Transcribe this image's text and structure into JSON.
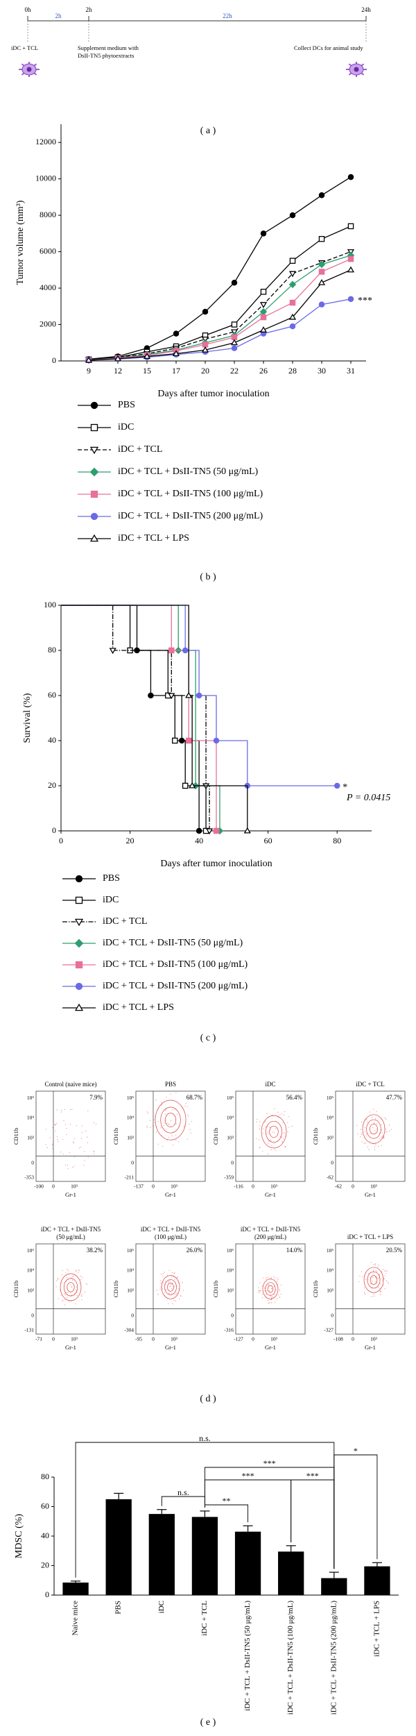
{
  "panel_labels": [
    "( a )",
    "( b )",
    "( c )",
    "( d )",
    "( e )"
  ],
  "timeline": {
    "times": [
      "0h",
      "2h",
      "24h"
    ],
    "durations": [
      "2h",
      "22h"
    ],
    "steps": [
      [
        "iDC + TCL"
      ],
      [
        "Supplement medium with",
        "DsII-TN5 phytoextracts"
      ],
      [
        "Collect DCs for animal study"
      ]
    ]
  },
  "chart_data": [
    {
      "type": "line",
      "categories": [
        "9",
        "12",
        "15",
        "17",
        "20",
        "22",
        "26",
        "28",
        "30",
        "31"
      ],
      "x_label": "Days after tumor inoculation",
      "y_label": "Tumor volume (mm³)",
      "ylim": [
        0,
        13000
      ],
      "yticks": [
        0,
        2000,
        4000,
        6000,
        8000,
        10000,
        12000
      ],
      "annotation": "***",
      "series": [
        {
          "name": "PBS",
          "color": "#000000",
          "marker": "circle",
          "filled": true,
          "line_style": "solid",
          "values": [
            100,
            250,
            700,
            1500,
            2700,
            4300,
            7000,
            8000,
            9100,
            10100
          ]
        },
        {
          "name": "iDC",
          "color": "#000000",
          "marker": "square",
          "filled": false,
          "line_style": "solid",
          "values": [
            80,
            200,
            500,
            800,
            1400,
            2000,
            3800,
            5500,
            6700,
            7400
          ]
        },
        {
          "name": "iDC + TCL",
          "color": "#000000",
          "marker": "triangle_down",
          "filled": false,
          "line_style": "dashed",
          "values": [
            60,
            180,
            400,
            700,
            1200,
            1600,
            3100,
            4800,
            5400,
            6000
          ]
        },
        {
          "name": "iDC + TCL + DsII-TN5 (50 μg/mL)",
          "color": "#2e9e6e",
          "marker": "diamond",
          "filled": true,
          "line_style": "solid",
          "values": [
            50,
            150,
            350,
            600,
            1000,
            1400,
            2700,
            4200,
            5300,
            5800
          ]
        },
        {
          "name": "iDC + TCL + DsII-TN5 (100 μg/mL)",
          "color": "#e8709a",
          "marker": "square",
          "filled": true,
          "line_style": "solid",
          "values": [
            50,
            150,
            300,
            550,
            900,
            1300,
            2400,
            3200,
            4900,
            5600
          ]
        },
        {
          "name": "iDC + TCL + DsII-TN5 (200 μg/mL)",
          "color": "#6a6ae8",
          "marker": "circle",
          "filled": true,
          "line_style": "solid",
          "values": [
            40,
            100,
            200,
            350,
            500,
            700,
            1500,
            1900,
            3100,
            3400
          ]
        },
        {
          "name": "iDC + TCL + LPS",
          "color": "#000000",
          "marker": "triangle_up",
          "filled": false,
          "line_style": "solid",
          "values": [
            40,
            120,
            250,
            400,
            600,
            1000,
            1700,
            2400,
            4300,
            5000
          ]
        }
      ]
    },
    {
      "type": "step",
      "x_label": "Days after tumor inoculation",
      "y_label": "Survival (%)",
      "xlim": [
        0,
        90
      ],
      "xticks": [
        0,
        20,
        40,
        60,
        80
      ],
      "ylim": [
        0,
        100
      ],
      "yticks": [
        0,
        20,
        40,
        60,
        80,
        100
      ],
      "annotations": [
        "*",
        "P = 0.0415"
      ],
      "series": [
        {
          "name": "PBS",
          "color": "#000000",
          "marker": "circle",
          "filled": true,
          "line_style": "solid",
          "x": [
            0,
            22,
            26,
            35,
            40
          ],
          "values": [
            100,
            80,
            60,
            40,
            0
          ]
        },
        {
          "name": "iDC",
          "color": "#000000",
          "marker": "square",
          "filled": false,
          "line_style": "solid",
          "x": [
            0,
            20,
            31,
            33,
            36,
            42
          ],
          "values": [
            100,
            80,
            60,
            40,
            20,
            0
          ]
        },
        {
          "name": "iDC + TCL",
          "color": "#000000",
          "marker": "triangle_down",
          "filled": false,
          "line_style": "dashdot",
          "x": [
            0,
            15,
            32,
            42,
            43
          ],
          "values": [
            100,
            80,
            60,
            20,
            0
          ]
        },
        {
          "name": "iDC + TCL + DsII-TN5 (50 μg/mL)",
          "color": "#2e9e6e",
          "marker": "diamond",
          "filled": true,
          "line_style": "solid",
          "x": [
            0,
            34,
            39,
            46
          ],
          "values": [
            100,
            80,
            20,
            0
          ]
        },
        {
          "name": "iDC + TCL + DsII-TN5 (100 μg/mL)",
          "color": "#e8709a",
          "marker": "square",
          "filled": true,
          "line_style": "solid",
          "x": [
            0,
            32,
            37,
            45
          ],
          "values": [
            100,
            80,
            40,
            0
          ]
        },
        {
          "name": "iDC + TCL + DsII-TN5 (200 μg/mL)",
          "color": "#6a6ae8",
          "marker": "circle",
          "filled": true,
          "line_style": "solid",
          "x": [
            0,
            36,
            40,
            45,
            54,
            80
          ],
          "values": [
            100,
            80,
            60,
            40,
            20,
            20
          ]
        },
        {
          "name": "iDC + TCL + LPS",
          "color": "#000000",
          "marker": "triangle_up",
          "filled": false,
          "line_style": "solid",
          "x": [
            0,
            37,
            38,
            54
          ],
          "values": [
            100,
            60,
            20,
            0
          ]
        }
      ]
    },
    {
      "type": "bar",
      "y_label": "MDSC (%)",
      "color": "#000000",
      "categories": [
        "Naive mice",
        "PBS",
        "iDC",
        "iDC + TCL",
        "iDC + TCL + DsII-TN5 (50 μg/mL)",
        "iDC + TCL + DsII-TN5 (100 μg/mL)",
        "iDC + TCL + DsII-TN5 (200 μg/mL)",
        "iDC + TCL + LPS"
      ],
      "values": [
        8.5,
        65,
        55,
        53,
        43,
        29.5,
        11.5,
        19.5
      ],
      "errors": [
        1,
        4,
        3,
        4,
        4,
        4,
        4,
        2.5
      ],
      "ylim": [
        0,
        80
      ],
      "yticks": [
        0,
        20,
        40,
        60,
        80
      ],
      "brackets": [
        {
          "from": 0,
          "to": 6,
          "label": "n.s."
        },
        {
          "from": 6,
          "to": 7,
          "label": "*"
        },
        {
          "from": 3,
          "to": 6,
          "label": "***"
        },
        {
          "from": 3,
          "to": 5,
          "label": "***"
        },
        {
          "from": 5,
          "to": 6,
          "label": "***"
        },
        {
          "from": 2,
          "to": 3,
          "label": "n.s."
        },
        {
          "from": 3,
          "to": 4,
          "label": "**"
        }
      ]
    }
  ],
  "flow": {
    "x_label": "Gr-1",
    "y_label": "CD11b",
    "panels": [
      {
        "title": [
          "Control (naive mice)"
        ],
        "percent": "7.9%",
        "y_ticks": [
          "10⁵",
          "10⁴",
          "10³",
          "0",
          "-353"
        ],
        "x_ticks": [
          "-100",
          "0",
          "10³"
        ]
      },
      {
        "title": [
          "PBS"
        ],
        "percent": "68.7%",
        "y_ticks": [
          "10⁵",
          "10⁴",
          "10³",
          "0",
          "-211"
        ],
        "x_ticks": [
          "-137",
          "0",
          "10³"
        ]
      },
      {
        "title": [
          "iDC"
        ],
        "percent": "56.4%",
        "y_ticks": [
          "10⁵",
          "10⁴",
          "10³",
          "0",
          "-359"
        ],
        "x_ticks": [
          "-116",
          "0",
          "10³"
        ]
      },
      {
        "title": [
          "iDC + TCL"
        ],
        "percent": "47.7%",
        "y_ticks": [
          "10⁵",
          "10⁴",
          "10³",
          "0",
          "-62"
        ],
        "x_ticks": [
          "-62",
          "0",
          "10³"
        ]
      },
      {
        "title": [
          "iDC + TCL + DsII-TN5",
          "(50 μg/mL)"
        ],
        "percent": "38.2%",
        "y_ticks": [
          "10⁵",
          "10⁴",
          "10³",
          "0",
          "-131"
        ],
        "x_ticks": [
          "-71",
          "0",
          "10³"
        ]
      },
      {
        "title": [
          "iDC + TCL + DsII-TN5",
          "(100 μg/mL)"
        ],
        "percent": "26.0%",
        "y_ticks": [
          "10⁵",
          "10⁴",
          "10³",
          "0",
          "-304"
        ],
        "x_ticks": [
          "-95",
          "0",
          "10³"
        ]
      },
      {
        "title": [
          "iDC + TCL + DsII-TN5",
          "(200 μg/mL)"
        ],
        "percent": "14.0%",
        "y_ticks": [
          "10⁵",
          "10⁴",
          "10³",
          "0",
          "-316"
        ],
        "x_ticks": [
          "-127",
          "0",
          "10³"
        ]
      },
      {
        "title": [
          "iDC + TCL + LPS"
        ],
        "percent": "20.5%",
        "y_ticks": [
          "10⁵",
          "10⁴",
          "10³",
          "0",
          "-327"
        ],
        "x_ticks": [
          "-108",
          "0",
          "10³"
        ]
      }
    ]
  }
}
